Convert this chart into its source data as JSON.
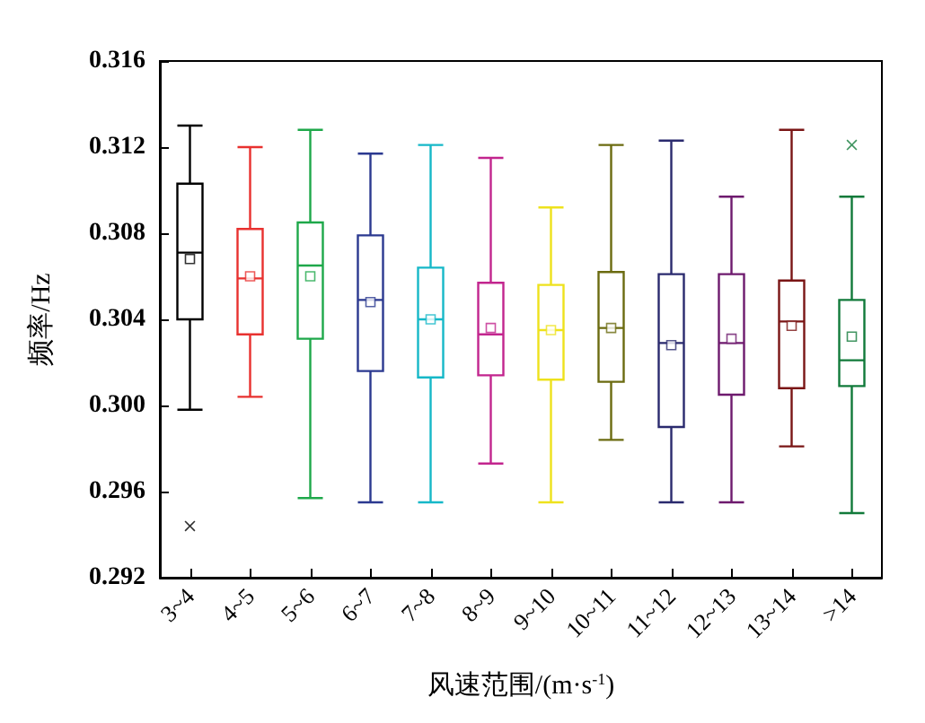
{
  "chart_data": {
    "type": "box",
    "xlabel": "风速范围/(m·s$^{-1}$)",
    "ylabel": "频率/Hz",
    "categories": [
      "3~4",
      "4~5",
      "5~6",
      "6~7",
      "7~8",
      "8~9",
      "9~10",
      "10~11",
      "11~12",
      "12~13",
      "13~14",
      ">14"
    ],
    "colors": [
      "#000000",
      "#e8312f",
      "#1ea84a",
      "#2b3990",
      "#16b8c8",
      "#c2258e",
      "#eee21c",
      "#6b6b10",
      "#2a2a6e",
      "#6e1a6e",
      "#7a1515",
      "#117a3a"
    ],
    "boxes": [
      {
        "low": 0.2998,
        "q1": 0.304,
        "median": 0.3071,
        "q3": 0.3103,
        "high": 0.313,
        "mean": 0.3068,
        "outliers": [
          0.2944
        ]
      },
      {
        "low": 0.3004,
        "q1": 0.3033,
        "median": 0.3059,
        "q3": 0.3082,
        "high": 0.312,
        "mean": 0.306
      },
      {
        "low": 0.2957,
        "q1": 0.3031,
        "median": 0.3065,
        "q3": 0.3085,
        "high": 0.3128,
        "mean": 0.306
      },
      {
        "low": 0.2955,
        "q1": 0.3016,
        "median": 0.3049,
        "q3": 0.3079,
        "high": 0.3117,
        "mean": 0.3048
      },
      {
        "low": 0.2955,
        "q1": 0.3013,
        "median": 0.304,
        "q3": 0.3064,
        "high": 0.3121,
        "mean": 0.304
      },
      {
        "low": 0.2973,
        "q1": 0.3014,
        "median": 0.3033,
        "q3": 0.3057,
        "high": 0.3115,
        "mean": 0.3036
      },
      {
        "low": 0.2955,
        "q1": 0.3012,
        "median": 0.3035,
        "q3": 0.3056,
        "high": 0.3092,
        "mean": 0.3035
      },
      {
        "low": 0.2984,
        "q1": 0.3011,
        "median": 0.3036,
        "q3": 0.3062,
        "high": 0.3121,
        "mean": 0.3036
      },
      {
        "low": 0.2955,
        "q1": 0.299,
        "median": 0.3029,
        "q3": 0.3061,
        "high": 0.3123,
        "mean": 0.3028
      },
      {
        "low": 0.2955,
        "q1": 0.3005,
        "median": 0.3029,
        "q3": 0.3061,
        "high": 0.3097,
        "mean": 0.3031
      },
      {
        "low": 0.2981,
        "q1": 0.3008,
        "median": 0.3039,
        "q3": 0.3058,
        "high": 0.3128,
        "mean": 0.3037
      },
      {
        "low": 0.295,
        "q1": 0.3009,
        "median": 0.3021,
        "q3": 0.3049,
        "high": 0.3097,
        "mean": 0.3032,
        "outliers": [
          0.3121
        ]
      }
    ],
    "ylim": [
      0.292,
      0.316
    ],
    "yticks": [
      0.292,
      0.296,
      {
        "value": 0.3,
        "label": "0.300"
      },
      0.304,
      0.308,
      0.312,
      0.316
    ],
    "grid": false
  }
}
